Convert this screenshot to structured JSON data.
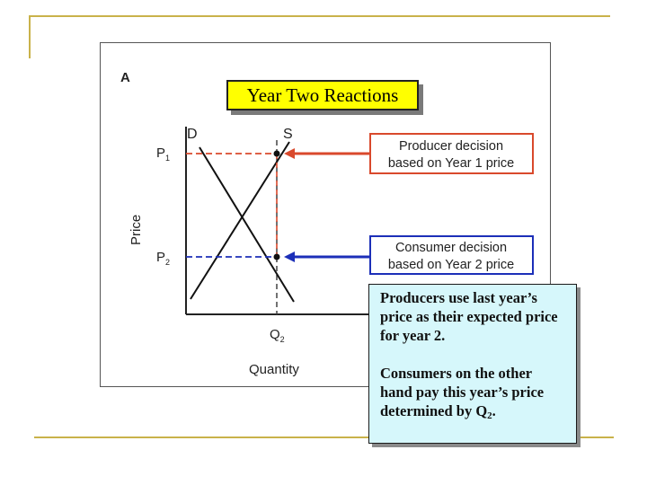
{
  "slide": {
    "title": "Year Two Reactions",
    "note": {
      "p1": "Producers use last year’s price as their expected price for year 2.",
      "p2_main": "Consumers on the other hand pay this year’s price determined by Q",
      "p2_sub": "2",
      "p2_end": "."
    }
  },
  "figure": {
    "panel_label": "A",
    "xlabel": "Quantity",
    "ylabel": "Price",
    "demand_label": "D",
    "supply_label": "S",
    "p1_main": "P",
    "p1_sub": "1",
    "p2_main": "P",
    "p2_sub": "2",
    "q2_main": "Q",
    "q2_sub": "2",
    "producer_box": {
      "line1": "Producer decision",
      "line2": "based on Year 1 price"
    },
    "consumer_box": {
      "line1": "Consumer decision",
      "line2": "based on Year 2 price"
    },
    "colors": {
      "producer": "#d9492c",
      "consumer": "#1c2fb8",
      "curves": "#111111"
    }
  }
}
